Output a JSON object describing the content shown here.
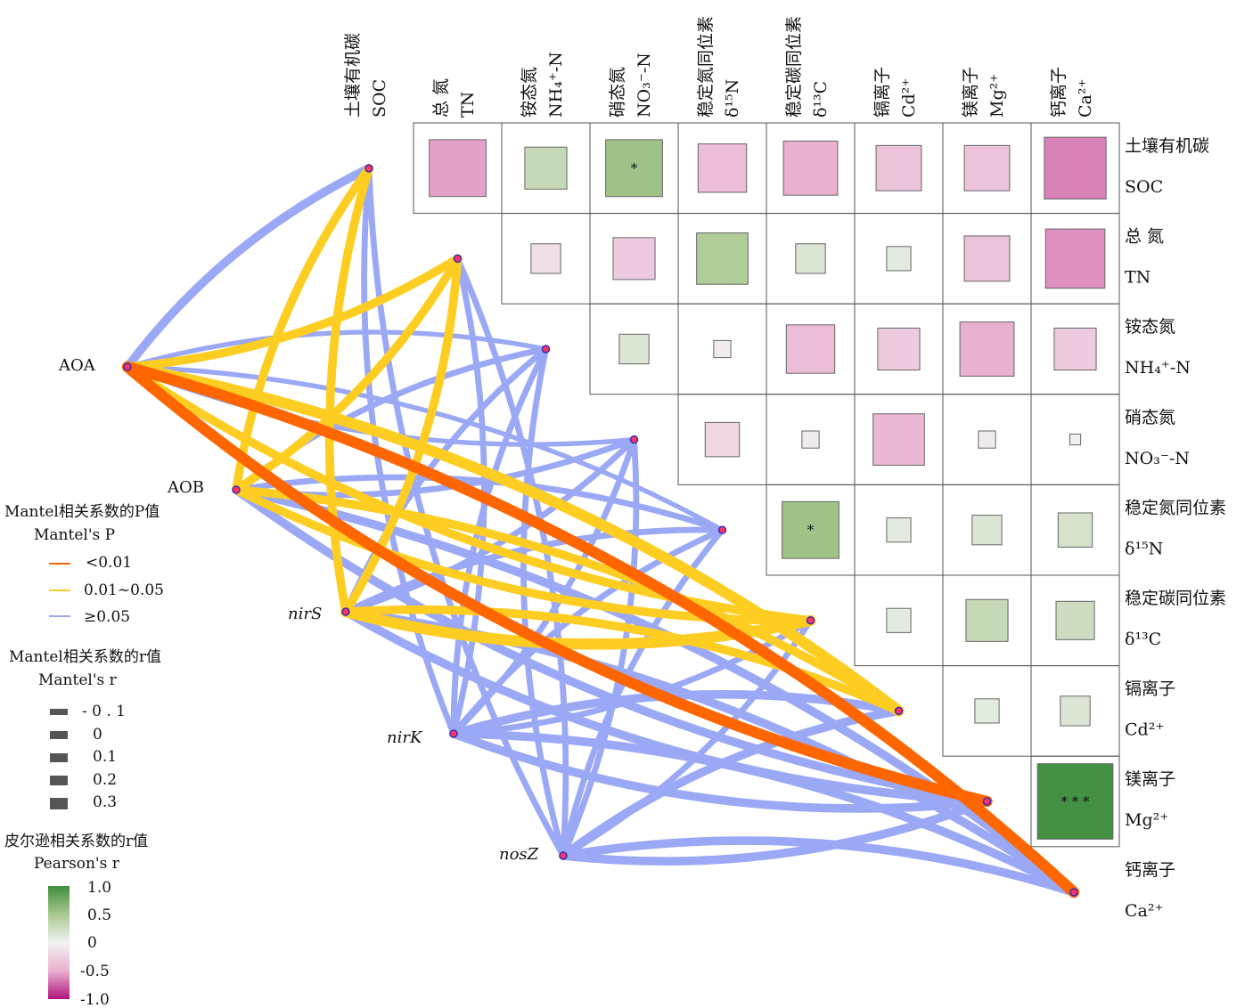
{
  "chart_data": {
    "type": "heatmap",
    "variables": [
      {
        "cn": "土壤有机碳",
        "en": "SOC"
      },
      {
        "cn": "总 氮",
        "en": "TN"
      },
      {
        "cn": "铵态氮",
        "en": "NH₄⁺-N"
      },
      {
        "cn": "硝态氮",
        "en": "NO₃⁻-N"
      },
      {
        "cn": "稳定氮同位素",
        "en": "δ¹⁵N"
      },
      {
        "cn": "稳定碳同位素",
        "en": "δ¹³C"
      },
      {
        "cn": "镉离子",
        "en": "Cd²⁺"
      },
      {
        "cn": "镁离子",
        "en": "Mg²⁺"
      },
      {
        "cn": "钙离子",
        "en": "Ca²⁺"
      }
    ],
    "pearson_r": [
      [
        null,
        -0.55,
        0.3,
        0.55,
        -0.4,
        -0.5,
        -0.35,
        -0.35,
        -0.65
      ],
      [
        null,
        null,
        -0.15,
        -0.3,
        0.45,
        0.15,
        0.1,
        -0.35,
        -0.6
      ],
      [
        null,
        null,
        null,
        0.15,
        -0.05,
        -0.4,
        -0.3,
        -0.5,
        -0.3
      ],
      [
        null,
        null,
        null,
        null,
        -0.2,
        -0.05,
        -0.45,
        -0.05,
        -0.02
      ],
      [
        null,
        null,
        null,
        null,
        null,
        0.55,
        0.1,
        0.15,
        0.2
      ],
      [
        null,
        null,
        null,
        null,
        null,
        null,
        0.1,
        0.3,
        0.25
      ],
      [
        null,
        null,
        null,
        null,
        null,
        null,
        null,
        0.1,
        0.15
      ],
      [
        null,
        null,
        null,
        null,
        null,
        null,
        null,
        null,
        0.97
      ]
    ],
    "significance": [
      {
        "row": 0,
        "col": 3,
        "mark": "*"
      },
      {
        "row": 4,
        "col": 5,
        "mark": "*"
      },
      {
        "row": 7,
        "col": 8,
        "mark": "* * *"
      }
    ],
    "genes": [
      "AOA",
      "AOB",
      "nirS",
      "nirK",
      "nosZ"
    ],
    "mantel_links": [
      {
        "gene": 0,
        "var": 0,
        "p": "≥0.05",
        "r": 0.2
      },
      {
        "gene": 0,
        "var": 1,
        "p": "0.01~0.05",
        "r": 0.2
      },
      {
        "gene": 0,
        "var": 2,
        "p": "≥0.05",
        "r": 0.05
      },
      {
        "gene": 0,
        "var": 3,
        "p": "≥0.05",
        "r": 0.05
      },
      {
        "gene": 0,
        "var": 4,
        "p": "≥0.05",
        "r": 0.05
      },
      {
        "gene": 0,
        "var": 5,
        "p": "0.01~0.05",
        "r": 0.2
      },
      {
        "gene": 0,
        "var": 6,
        "p": "0.01~0.05",
        "r": 0.3
      },
      {
        "gene": 0,
        "var": 7,
        "p": "<0.01",
        "r": 0.3
      },
      {
        "gene": 0,
        "var": 8,
        "p": "<0.01",
        "r": 0.3
      },
      {
        "gene": 1,
        "var": 0,
        "p": "0.01~0.05",
        "r": 0.2
      },
      {
        "gene": 1,
        "var": 1,
        "p": "0.01~0.05",
        "r": 0.2
      },
      {
        "gene": 1,
        "var": 2,
        "p": "≥0.05",
        "r": 0.1
      },
      {
        "gene": 1,
        "var": 3,
        "p": "≥0.05",
        "r": 0.1
      },
      {
        "gene": 1,
        "var": 4,
        "p": "≥0.05",
        "r": 0.1
      },
      {
        "gene": 1,
        "var": 5,
        "p": "0.01~0.05",
        "r": 0.2
      },
      {
        "gene": 1,
        "var": 6,
        "p": "0.01~0.05",
        "r": 0.2
      },
      {
        "gene": 1,
        "var": 7,
        "p": "≥0.05",
        "r": 0.2
      },
      {
        "gene": 1,
        "var": 8,
        "p": "≥0.05",
        "r": 0.2
      },
      {
        "gene": 2,
        "var": 0,
        "p": "0.01~0.05",
        "r": 0.2
      },
      {
        "gene": 2,
        "var": 1,
        "p": "0.01~0.05",
        "r": 0.2
      },
      {
        "gene": 2,
        "var": 2,
        "p": "≥0.05",
        "r": 0.1
      },
      {
        "gene": 2,
        "var": 3,
        "p": "≥0.05",
        "r": 0.1
      },
      {
        "gene": 2,
        "var": 4,
        "p": "≥0.05",
        "r": 0.1
      },
      {
        "gene": 2,
        "var": 5,
        "p": "0.01~0.05",
        "r": 0.3
      },
      {
        "gene": 2,
        "var": 6,
        "p": "0.01~0.05",
        "r": 0.2
      },
      {
        "gene": 2,
        "var": 7,
        "p": "≥0.05",
        "r": 0.2
      },
      {
        "gene": 2,
        "var": 8,
        "p": "≥0.05",
        "r": 0.2
      },
      {
        "gene": 3,
        "var": 0,
        "p": "≥0.05",
        "r": 0.1
      },
      {
        "gene": 3,
        "var": 1,
        "p": "≥0.05",
        "r": 0.1
      },
      {
        "gene": 3,
        "var": 2,
        "p": "≥0.05",
        "r": 0.1
      },
      {
        "gene": 3,
        "var": 3,
        "p": "≥0.05",
        "r": 0.1
      },
      {
        "gene": 3,
        "var": 4,
        "p": "≥0.05",
        "r": 0.1
      },
      {
        "gene": 3,
        "var": 5,
        "p": "≥0.05",
        "r": 0.1
      },
      {
        "gene": 3,
        "var": 6,
        "p": "≥0.05",
        "r": 0.2
      },
      {
        "gene": 3,
        "var": 7,
        "p": "≥0.05",
        "r": 0.2
      },
      {
        "gene": 3,
        "var": 8,
        "p": "≥0.05",
        "r": 0.2
      },
      {
        "gene": 4,
        "var": 0,
        "p": "≥0.05",
        "r": 0.1
      },
      {
        "gene": 4,
        "var": 1,
        "p": "≥0.05",
        "r": 0.1
      },
      {
        "gene": 4,
        "var": 2,
        "p": "≥0.05",
        "r": 0.1
      },
      {
        "gene": 4,
        "var": 3,
        "p": "≥0.05",
        "r": 0.1
      },
      {
        "gene": 4,
        "var": 4,
        "p": "≥0.05",
        "r": 0.1
      },
      {
        "gene": 4,
        "var": 5,
        "p": "≥0.05",
        "r": 0.1
      },
      {
        "gene": 4,
        "var": 6,
        "p": "≥0.05",
        "r": 0.2
      },
      {
        "gene": 4,
        "var": 7,
        "p": "≥0.05",
        "r": 0.2
      },
      {
        "gene": 4,
        "var": 8,
        "p": "≥0.05",
        "r": 0.2
      }
    ],
    "colors": {
      "p_lt_001": "#ff6600",
      "p_001_005": "#fecd22",
      "p_ge_005": "#9aa8f5",
      "pos_high": "#3e8e3e",
      "neutral": "#f2f2f2",
      "neg_high": "#b0157d",
      "node_fill": "#ff3366",
      "node_stroke": "#3a2db0"
    },
    "legend": {
      "p_title_cn": "Mantel相关系数的P值",
      "p_title_en": "Mantel's  P",
      "p_items": [
        "<0.01",
        "0.01~0.05",
        "≥0.05"
      ],
      "r_title_cn": "Mantel相关系数的r值",
      "r_title_en": "Mantel's  r",
      "r_items": [
        "- 0 . 1",
        "0",
        "0.1",
        "0.2",
        "0.3"
      ],
      "pearson_title_cn": "皮尔逊相关系数的r值",
      "pearson_title_en": "Pearson's  r",
      "pearson_ticks": [
        "1.0",
        "0.5",
        "0",
        "-0.5",
        "-1.0"
      ]
    }
  }
}
